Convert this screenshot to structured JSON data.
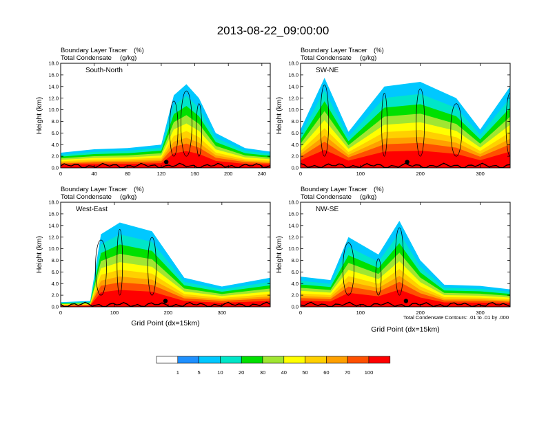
{
  "figure": {
    "title": "2013-08-22_09:00:00",
    "contour_note": "Total Condensate Contours: .01 to .01 by .000"
  },
  "chart_data": [
    {
      "type": "heatmap",
      "panel": "South-North",
      "field_labels": [
        "Boundary Layer Tracer",
        "(%)",
        "Total Condensate",
        "(g/kg)"
      ],
      "ylabel": "Height (km)",
      "xlabel": "",
      "xlim": [
        0,
        250
      ],
      "ylim": [
        0,
        18
      ],
      "xticks": [
        "0",
        "40",
        "80",
        "120",
        "160",
        "200",
        "240"
      ],
      "yticks": [
        "0.0",
        "2.0",
        "4.0",
        "6.0",
        "8.0",
        "10.0",
        "12.0",
        "14.0",
        "16.0",
        "18.0"
      ],
      "marker_x": 126,
      "cloud_tops_km": [
        {
          "x": 0,
          "top": 2.6
        },
        {
          "x": 40,
          "top": 3.2
        },
        {
          "x": 80,
          "top": 3.4
        },
        {
          "x": 120,
          "top": 4.0
        },
        {
          "x": 135,
          "top": 12.5
        },
        {
          "x": 150,
          "top": 14.4
        },
        {
          "x": 165,
          "top": 12.0
        },
        {
          "x": 185,
          "top": 6.0
        },
        {
          "x": 220,
          "top": 3.4
        },
        {
          "x": 250,
          "top": 2.8
        }
      ]
    },
    {
      "type": "heatmap",
      "panel": "SW-NE",
      "field_labels": [
        "Boundary Layer Tracer",
        "(%)",
        "Total Condensate",
        "(g/kg)"
      ],
      "ylabel": "Height (km)",
      "xlabel": "",
      "xlim": [
        0,
        350
      ],
      "ylim": [
        0,
        18
      ],
      "xticks": [
        "0",
        "100",
        "200",
        "300"
      ],
      "yticks": [
        "0.0",
        "2.0",
        "4.0",
        "6.0",
        "8.0",
        "10.0",
        "12.0",
        "14.0",
        "16.0",
        "18.0"
      ],
      "marker_x": 178,
      "cloud_tops_km": [
        {
          "x": 0,
          "top": 6.6
        },
        {
          "x": 40,
          "top": 15.5
        },
        {
          "x": 80,
          "top": 6.2
        },
        {
          "x": 140,
          "top": 14.0
        },
        {
          "x": 200,
          "top": 14.8
        },
        {
          "x": 260,
          "top": 12.0
        },
        {
          "x": 300,
          "top": 6.6
        },
        {
          "x": 350,
          "top": 14.0
        }
      ]
    },
    {
      "type": "heatmap",
      "panel": "West-East",
      "field_labels": [
        "Boundary Layer Tracer",
        "(%)",
        "Total Condensate",
        "(g/kg)"
      ],
      "ylabel": "Height (km)",
      "xlabel": "Grid Point (dx=15km)",
      "xlim": [
        0,
        390
      ],
      "ylim": [
        0,
        18
      ],
      "xticks": [
        "0",
        "100",
        "200",
        "300"
      ],
      "yticks": [
        "0.0",
        "2.0",
        "4.0",
        "6.0",
        "8.0",
        "10.0",
        "12.0",
        "14.0",
        "16.0",
        "18.0"
      ],
      "marker_x": 195,
      "cloud_tops_km": [
        {
          "x": 0,
          "top": 0.8
        },
        {
          "x": 55,
          "top": 1.0
        },
        {
          "x": 75,
          "top": 12.5
        },
        {
          "x": 110,
          "top": 14.5
        },
        {
          "x": 170,
          "top": 13.0
        },
        {
          "x": 230,
          "top": 5.0
        },
        {
          "x": 300,
          "top": 3.5
        },
        {
          "x": 390,
          "top": 5.0
        }
      ]
    },
    {
      "type": "heatmap",
      "panel": "NW-SE",
      "field_labels": [
        "Boundary Layer Tracer",
        "(%)",
        "Total Condensate",
        "(g/kg)"
      ],
      "ylabel": "Height (km)",
      "xlabel": "Grid Point (dx=15km)",
      "xlim": [
        0,
        350
      ],
      "ylim": [
        0,
        18
      ],
      "xticks": [
        "0",
        "100",
        "200",
        "300"
      ],
      "yticks": [
        "0.0",
        "2.0",
        "4.0",
        "6.0",
        "8.0",
        "10.0",
        "12.0",
        "14.0",
        "16.0",
        "18.0"
      ],
      "marker_x": 176,
      "cloud_tops_km": [
        {
          "x": 0,
          "top": 5.2
        },
        {
          "x": 50,
          "top": 4.6
        },
        {
          "x": 80,
          "top": 12.0
        },
        {
          "x": 130,
          "top": 9.0
        },
        {
          "x": 165,
          "top": 14.8
        },
        {
          "x": 200,
          "top": 8.0
        },
        {
          "x": 240,
          "top": 3.8
        },
        {
          "x": 300,
          "top": 3.6
        },
        {
          "x": 350,
          "top": 3.0
        }
      ]
    }
  ],
  "colorbar": {
    "colors": [
      "#ffffff",
      "#1e90ff",
      "#00c8ff",
      "#00e6c8",
      "#00e000",
      "#a0e632",
      "#ffff00",
      "#ffd000",
      "#ffa000",
      "#ff5000",
      "#ff0000"
    ],
    "labels": [
      "1",
      "5",
      "10",
      "20",
      "30",
      "40",
      "50",
      "60",
      "70",
      "100"
    ]
  }
}
